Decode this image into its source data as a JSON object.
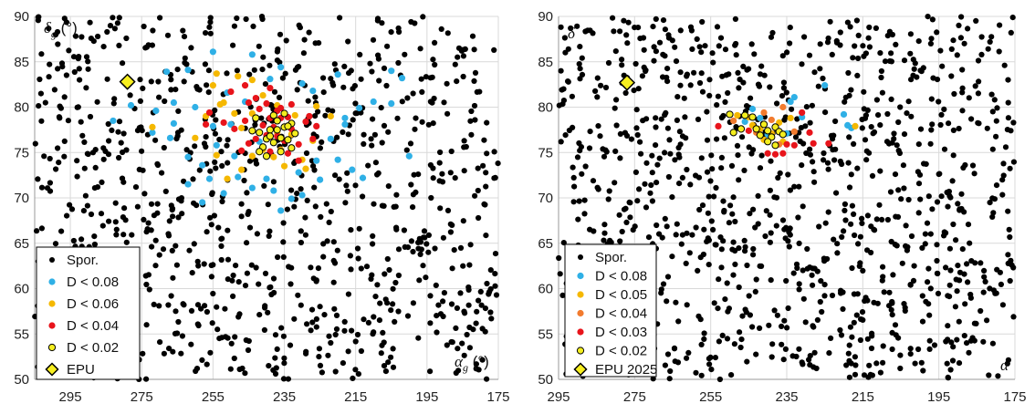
{
  "chart_data": [
    {
      "type": "scatter",
      "panel": "left",
      "xlabel": "αg (°)",
      "ylabel": "δg (°)",
      "xlabel_main": "α",
      "xlabel_sub": "g",
      "xlabel_unit": " (°)",
      "ylabel_main": "δ",
      "ylabel_sub": "g",
      "ylabel_unit": " (°)",
      "xlim": [
        305,
        175
      ],
      "ylim": [
        50,
        90
      ],
      "xticks": [
        295,
        275,
        255,
        235,
        215,
        195,
        175
      ],
      "yticks": [
        50,
        55,
        60,
        65,
        70,
        75,
        80,
        85,
        90
      ],
      "grid": true,
      "legend_position": "bottom-left",
      "legend": [
        "Spor.",
        "D < 0.08",
        "D < 0.06",
        "D < 0.04",
        "D < 0.02",
        "EPU"
      ],
      "colors": {
        "spor": "#000000",
        "d1": "#2fb0e6",
        "d2": "#f5b800",
        "d3": "#e8141b",
        "d4": "#f4ee1e",
        "epu": "#f7ef20"
      },
      "spor_seed": 7,
      "spor_count": 950,
      "series": [
        {
          "name": "D < 0.08",
          "points": [
            [
              271,
              79.6
            ],
            [
              278,
              80.2
            ],
            [
              283,
              78.5
            ],
            [
              266,
              78.2
            ],
            [
              262,
              74.5
            ],
            [
              258,
              73.6
            ],
            [
              256,
              72.1
            ],
            [
              252,
              70.5
            ],
            [
              248,
              72.3
            ],
            [
              244,
              71.1
            ],
            [
              238,
              70.8
            ],
            [
              233,
              69.9
            ],
            [
              231,
              72.8
            ],
            [
              226,
              74.1
            ],
            [
              220,
              74.2
            ],
            [
              216,
              73.1
            ],
            [
              213,
              72.2
            ],
            [
              222,
              76.5
            ],
            [
              218,
              78.1
            ],
            [
              214,
              79.9
            ],
            [
              210,
              80.6
            ],
            [
              205,
              80.4
            ],
            [
              202,
              83.2
            ],
            [
              205,
              84.0
            ],
            [
              220,
              83.6
            ],
            [
              230,
              82.6
            ],
            [
              236,
              84.4
            ],
            [
              244,
              85.8
            ],
            [
              255,
              86.1
            ],
            [
              262,
              84.1
            ],
            [
              268,
              83.9
            ],
            [
              266,
              80.5
            ],
            [
              260,
              80.0
            ],
            [
              255,
              77.9
            ],
            [
              250,
              78.1
            ],
            [
              246,
              80.6
            ],
            [
              254,
              75.8
            ],
            [
              249,
              74.6
            ],
            [
              242,
              76.2
            ],
            [
              240,
              72.1
            ],
            [
              236,
              68.6
            ],
            [
              230,
              70.3
            ],
            [
              225,
              72.0
            ],
            [
              218,
              78.8
            ],
            [
              200,
              74.6
            ],
            [
              258,
              69.5
            ],
            [
              262,
              71.5
            ],
            [
              267,
              76.6
            ],
            [
              272,
              77.2
            ],
            [
              251,
              81.6
            ],
            [
              239,
              83.1
            ],
            [
              227,
              81.8
            ]
          ]
        },
        {
          "name": "D < 0.06",
          "points": [
            [
              272,
              77.8
            ],
            [
              257,
              79.0
            ],
            [
              255,
              82.4
            ],
            [
              252,
              80.5
            ],
            [
              249,
              79.3
            ],
            [
              254,
              83.7
            ],
            [
              248,
              83.4
            ],
            [
              244,
              83.0
            ],
            [
              241,
              81.3
            ],
            [
              237,
              80.2
            ],
            [
              232,
              79.1
            ],
            [
              226,
              80.1
            ],
            [
              222,
              79.0
            ],
            [
              227,
              76.3
            ],
            [
              230,
              74.2
            ],
            [
              235,
              73.5
            ],
            [
              238,
              74.5
            ],
            [
              241,
              75.3
            ],
            [
              244,
              74.6
            ],
            [
              247,
              73.1
            ],
            [
              251,
              72.1
            ],
            [
              254,
              74.7
            ],
            [
              247,
              77.7
            ],
            [
              237,
              77.2
            ],
            [
              233,
              77.0
            ],
            [
              229,
              73.2
            ],
            [
              260,
              76.6
            ],
            [
              253,
              80.3
            ],
            [
              244,
              79.3
            ],
            [
              236,
              75.3
            ]
          ]
        },
        {
          "name": "D < 0.04",
          "points": [
            [
              256,
              79.4
            ],
            [
              252,
              78.3
            ],
            [
              249,
              77.6
            ],
            [
              246,
              78.5
            ],
            [
              245,
              80.5
            ],
            [
              246,
              82.4
            ],
            [
              243,
              81.0
            ],
            [
              240,
              80.4
            ],
            [
              239,
              78.8
            ],
            [
              238,
              77.8
            ],
            [
              236,
              78.8
            ],
            [
              237,
              76.8
            ],
            [
              235,
              76.3
            ],
            [
              234,
              78.9
            ],
            [
              233,
              77.6
            ],
            [
              231,
              75.9
            ],
            [
              229,
              78.4
            ],
            [
              228,
              79.0
            ],
            [
              241,
              78.0
            ],
            [
              243,
              76.5
            ],
            [
              245,
              76.0
            ],
            [
              247,
              75.2
            ],
            [
              239,
              75.1
            ],
            [
              234,
              74.9
            ],
            [
              231,
              74.1
            ],
            [
              227,
              76.5
            ],
            [
              226,
              77.9
            ],
            [
              242,
              79.8
            ],
            [
              237,
              79.6
            ],
            [
              233,
              80.3
            ],
            [
              239,
              82.1
            ],
            [
              257,
              78.1
            ],
            [
              250,
              81.7
            ],
            [
              240,
              76.9
            ],
            [
              236,
              79.9
            ]
          ]
        },
        {
          "name": "D < 0.02",
          "points": [
            [
              243,
              78.8
            ],
            [
              242,
              77.2
            ],
            [
              240,
              76.5
            ],
            [
              239,
              77.5
            ],
            [
              238,
              76.1
            ],
            [
              237,
              77.5
            ],
            [
              236,
              76.6
            ],
            [
              235,
              77.8
            ],
            [
              234,
              76.4
            ],
            [
              233,
              75.5
            ],
            [
              232,
              77.1
            ],
            [
              236,
              75.1
            ],
            [
              240,
              74.6
            ],
            [
              241,
              75.6
            ],
            [
              238,
              79.1
            ],
            [
              235,
              79.3
            ],
            [
              233,
              78.2
            ],
            [
              244,
              77.4
            ],
            [
              237,
              78.5
            ],
            [
              234,
              77.9
            ],
            [
              242,
              75.1
            ],
            [
              239,
              76.8
            ]
          ]
        },
        {
          "name": "EPU",
          "points": [
            [
              279,
              82.8
            ]
          ]
        }
      ]
    },
    {
      "type": "scatter",
      "panel": "right",
      "xlabel": "α",
      "ylabel": "δ",
      "xlim": [
        295,
        175
      ],
      "ylim": [
        50,
        90
      ],
      "xticks": [
        295,
        275,
        255,
        235,
        215,
        195,
        175
      ],
      "yticks": [
        50,
        55,
        60,
        65,
        70,
        75,
        80,
        85,
        90
      ],
      "grid": true,
      "legend_position": "bottom-left",
      "legend": [
        "Spor.",
        "D < 0.08",
        "D < 0.05",
        "D < 0.04",
        "D < 0.03",
        "D < 0.02",
        "EPU 2025"
      ],
      "colors": {
        "spor": "#000000",
        "d1": "#2fb0e6",
        "d2": "#f5b800",
        "d3": "#f27b2e",
        "d4": "#e8141b",
        "d5": "#f4ee1e",
        "epu": "#f7ef20"
      },
      "spor_seed": 19,
      "spor_count": 1050,
      "series": [
        {
          "name": "D < 0.08",
          "points": [
            [
              246,
              78.4
            ],
            [
              242,
              78.8
            ],
            [
              240,
              77.0
            ],
            [
              234,
              80.6
            ],
            [
              233,
              81.1
            ],
            [
              231,
              78.9
            ],
            [
              225,
              82.4
            ],
            [
              220,
              79.2
            ],
            [
              219,
              78.0
            ],
            [
              218,
              77.7
            ],
            [
              235,
              77.1
            ],
            [
              244,
              79.8
            ]
          ]
        },
        {
          "name": "D < 0.05",
          "points": [
            [
              248,
              79.1
            ],
            [
              245,
              78.9
            ],
            [
              244,
              78.0
            ],
            [
              242,
              77.6
            ],
            [
              241,
              76.4
            ],
            [
              239,
              77.1
            ],
            [
              237,
              78.3
            ],
            [
              236,
              76.2
            ],
            [
              234,
              78.8
            ],
            [
              217,
              77.9
            ]
          ]
        },
        {
          "name": "D < 0.04",
          "points": [
            [
              236,
              80.0
            ],
            [
              239,
              78.6
            ],
            [
              243,
              77.2
            ],
            [
              237,
              75.9
            ],
            [
              233,
              77.3
            ],
            [
              249,
              78.5
            ],
            [
              241,
              79.4
            ]
          ]
        },
        {
          "name": "D < 0.03",
          "points": [
            [
              253,
              77.9
            ],
            [
              245,
              77.4
            ],
            [
              240,
              74.9
            ],
            [
              238,
              74.8
            ],
            [
              236,
              74.9
            ],
            [
              235,
              75.9
            ],
            [
              233,
              75.8
            ],
            [
              231,
              79.4
            ],
            [
              229,
              77.2
            ],
            [
              228,
              76.0
            ],
            [
              224,
              76.0
            ]
          ]
        },
        {
          "name": "D < 0.02",
          "points": [
            [
              250,
              79.2
            ],
            [
              249,
              77.2
            ],
            [
              247,
              77.6
            ],
            [
              246,
              79.1
            ],
            [
              244,
              78.9
            ],
            [
              243,
              77.6
            ],
            [
              241,
              78.1
            ],
            [
              240,
              77.4
            ],
            [
              239,
              76.7
            ],
            [
              238,
              77.8
            ],
            [
              237,
              77.3
            ],
            [
              236,
              77.0
            ],
            [
              238,
              75.8
            ],
            [
              240,
              76.2
            ],
            [
              242,
              76.9
            ]
          ]
        },
        {
          "name": "EPU 2025",
          "points": [
            [
              277,
              82.7
            ]
          ]
        }
      ]
    }
  ]
}
